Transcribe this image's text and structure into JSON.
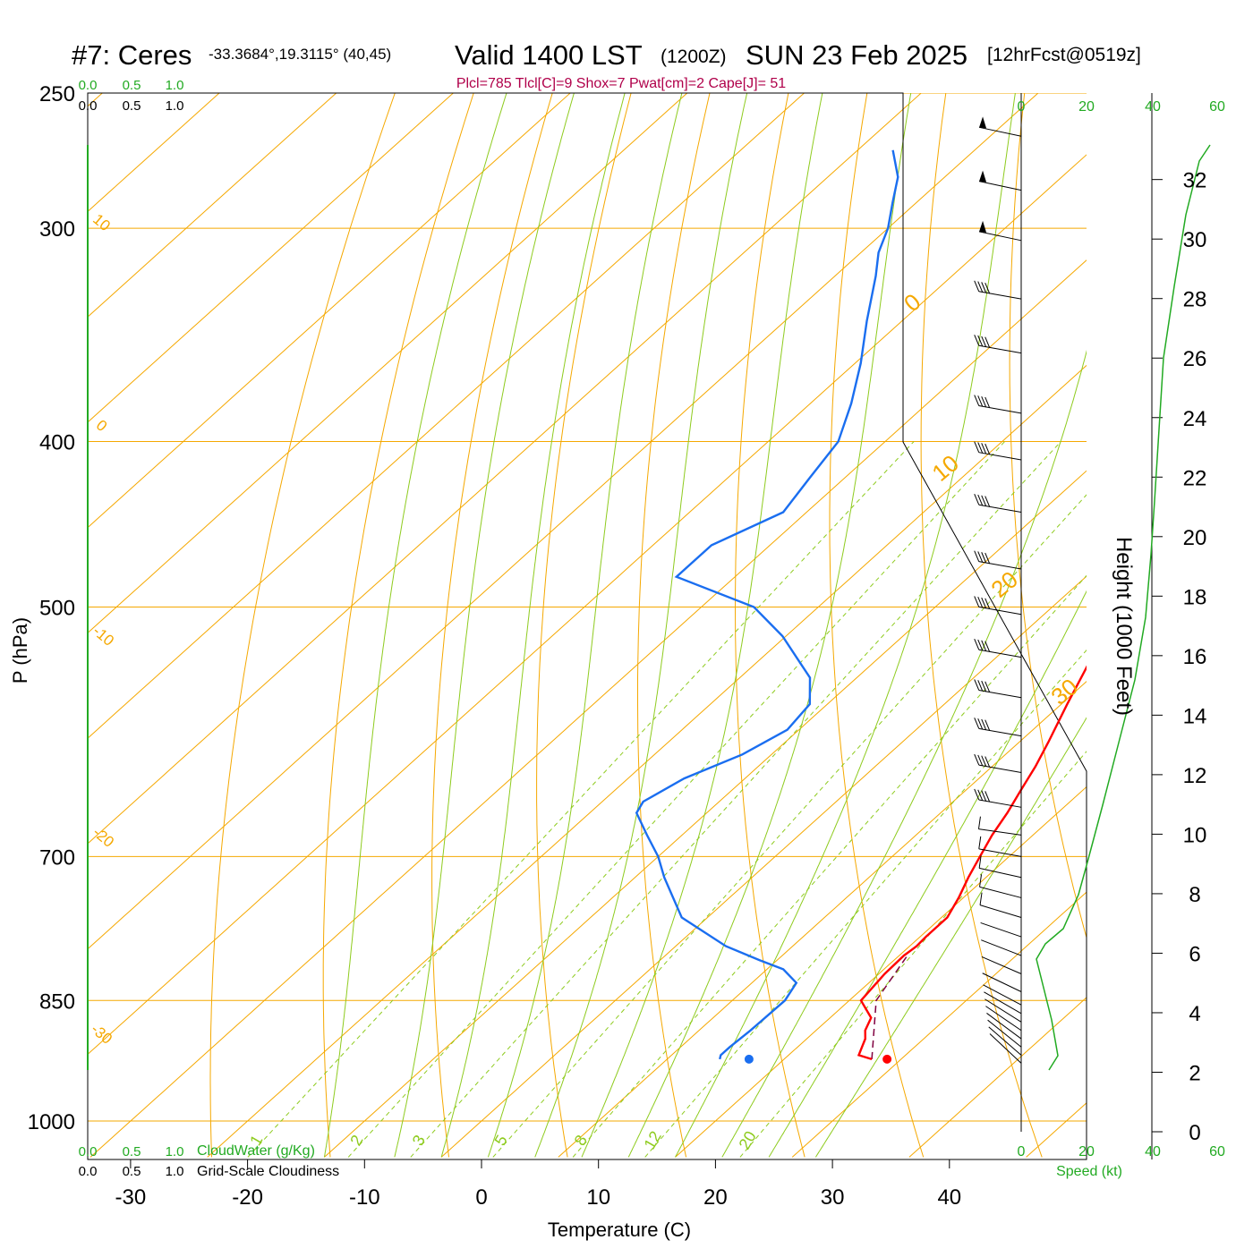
{
  "header": {
    "station": "#7: Ceres",
    "coords": "-33.3684°,19.3115° (40,45)",
    "valid": "Valid 1400 LST",
    "zulu": "(1200Z)",
    "date": "SUN 23 Feb 2025",
    "forecast": "[12hrFcst@0519z]",
    "indices": "Plcl=785 Tlcl[C]=9 Shox=7 Pwat[cm]=2 Cape[J]= 51"
  },
  "colors": {
    "isotherm": "#f5a800",
    "dry_adiabat": "#f5a800",
    "moist_adiabat": "#8ecb1e",
    "mixing_ratio": "#8ecb1e",
    "temperature": "#ff0000",
    "dewpoint": "#1a6ef0",
    "parcel": "#800040",
    "green_text": "#22aa22",
    "maroon_text": "#b0004a",
    "height_curve": "#22aa22"
  },
  "chart_data": {
    "type": "line",
    "subtype": "skew-T log-P",
    "xlabel": "Temperature (C)",
    "ylabel": "P (hPa)",
    "x_ticks": [
      -30,
      -20,
      -10,
      0,
      10,
      20,
      30,
      40
    ],
    "p_ticks": [
      250,
      300,
      400,
      500,
      700,
      850,
      1000
    ],
    "isotherm_labels": [
      "10",
      "0",
      "-10",
      "-20",
      "-30",
      "0",
      "10",
      "20",
      "30"
    ],
    "mixing_ratio_labels": [
      "1",
      "2",
      "3",
      "5",
      "8",
      "12",
      "20"
    ],
    "temperature_profile": {
      "name": "Temperature",
      "p": [
        920,
        915,
        905,
        895,
        885,
        870,
        850,
        820,
        800,
        790,
        780,
        760,
        740,
        720,
        700,
        680,
        660,
        640,
        620,
        600,
        570,
        540,
        500,
        480,
        460,
        440,
        420,
        400,
        380,
        360,
        340,
        320,
        300,
        280,
        270
      ],
      "t": [
        27.5,
        26.0,
        25.5,
        25.0,
        24.2,
        23.5,
        21.0,
        20.5,
        20.4,
        20.6,
        20.5,
        20.5,
        19.6,
        18.5,
        17.5,
        16.5,
        15.7,
        14.7,
        13.7,
        12.5,
        10.5,
        8.5,
        5.5,
        4.2,
        2.5,
        0.5,
        -1.7,
        -4.0,
        -6.3,
        -9.0,
        -12.0,
        -15.5,
        -19.0,
        -22.5,
        -24.8
      ]
    },
    "dewpoint_profile": {
      "name": "Dewpoint",
      "p": [
        920,
        915,
        905,
        885,
        850,
        830,
        815,
        805,
        790,
        760,
        720,
        700,
        680,
        660,
        650,
        630,
        610,
        590,
        570,
        550,
        520,
        500,
        480,
        460,
        440,
        420,
        400,
        380,
        360,
        340,
        320,
        310,
        300,
        290,
        280,
        270
      ],
      "t": [
        14.5,
        14.2,
        14.2,
        14.4,
        14.5,
        13.8,
        11.4,
        8.5,
        4.3,
        -2.2,
        -7.5,
        -10.0,
        -13.0,
        -16.0,
        -16.5,
        -15.2,
        -12.5,
        -11.0,
        -11.5,
        -14.0,
        -20.3,
        -25.5,
        -35.0,
        -35.0,
        -32.0,
        -33.0,
        -34.0,
        -36.5,
        -39.5,
        -43.0,
        -46.5,
        -48.5,
        -50.0,
        -52.0,
        -54.0,
        -57.0
      ]
    },
    "parcel_path": {
      "name": "Parcel",
      "p": [
        920,
        850,
        800
      ],
      "t": [
        27.5,
        22.3,
        20.7
      ]
    },
    "surface_temperature_marker": {
      "p": 920,
      "t": 28.8
    },
    "surface_dewpoint_marker": {
      "p": 920,
      "t": 17.0
    },
    "wind_panel": {
      "xlabel": "Speed (kt)",
      "speed_ticks": [
        0,
        20,
        40,
        60
      ],
      "barb_pressures": [
        265,
        285,
        305,
        330,
        355,
        385,
        410,
        440,
        475,
        505,
        535,
        565,
        595,
        625,
        655,
        680,
        700,
        720,
        740,
        760,
        780,
        800,
        820,
        840,
        855,
        865,
        875,
        885,
        895,
        905,
        915,
        925
      ]
    },
    "height_axis": {
      "label": "Height (1000 Feet)",
      "ticks": [
        0,
        2,
        4,
        6,
        8,
        10,
        12,
        14,
        16,
        18,
        20,
        22,
        24,
        26,
        28,
        30,
        32
      ]
    },
    "cloud_axis": {
      "cloudwater_label": "CloudWater (g/Kg)",
      "cloudiness_label": "Grid-Scale Cloudiness",
      "ticks": [
        "0.0",
        "0.5",
        "1.0"
      ]
    }
  }
}
